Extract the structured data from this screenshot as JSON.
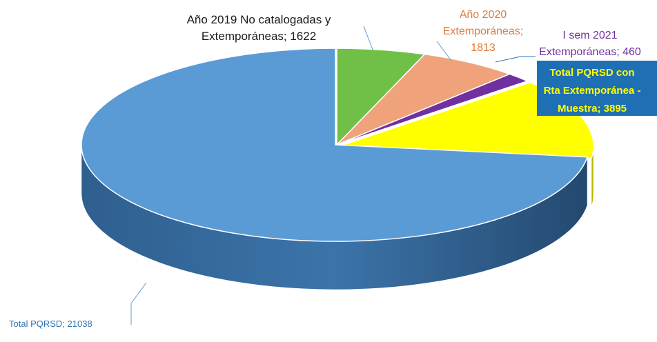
{
  "chart_data": {
    "type": "pie",
    "title": "",
    "style": "3d-exploded",
    "legend": "none",
    "slices": [
      {
        "label": "Año 2019 No catalogadas y Extemporáneas",
        "value": 1622,
        "color": "#70c047",
        "label_lines": [
          "Año 2019 No catalogadas y",
          "Extemporáneas; 1622"
        ],
        "label_color": "#1a1a1a"
      },
      {
        "label": "Año 2020 Extemporáneas",
        "value": 1813,
        "color": "#f0a37a",
        "label_lines": [
          "Año 2020",
          "Extemporáneas;",
          "1813"
        ],
        "label_color": "#e07b39"
      },
      {
        "label": "I sem 2021 Extemporáneas",
        "value": 460,
        "color": "#7030a0",
        "label_lines": [
          "I sem 2021",
          "Extemporáneas; 460"
        ],
        "label_color": "#7030a0"
      },
      {
        "label": "Total PQRSD con Rta Extemporánea - Muestra",
        "value": 3895,
        "color": "#ffff00",
        "label_lines": [
          "Total PQRSD con",
          "Rta Extemporánea -",
          "Muestra; 3895"
        ],
        "label_color": "#ffff00",
        "label_bg": "#1f6fb5"
      },
      {
        "label": "Total PQRSD",
        "value": 21038,
        "color": "#5b9bd5",
        "label_lines": [
          "Total PQRSD; 21038"
        ],
        "label_color": "#2e75b6"
      }
    ]
  }
}
